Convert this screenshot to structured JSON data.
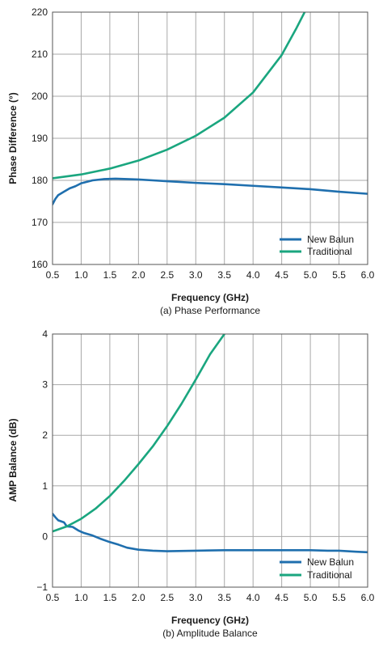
{
  "chart_data": [
    {
      "type": "line",
      "xlabel": "Frequency (GHz)",
      "ylabel": "Phase Difference (°)",
      "caption": "(a) Phase Performance",
      "xlim": [
        0.5,
        6.0
      ],
      "ylim": [
        160,
        220
      ],
      "xticks": [
        "0.5",
        "1.0",
        "1.5",
        "2.0",
        "2.5",
        "3.0",
        "3.5",
        "4.0",
        "4.5",
        "5.0",
        "5.5",
        "6.0"
      ],
      "yticks": [
        "160",
        "170",
        "180",
        "190",
        "200",
        "210",
        "220"
      ],
      "grid": true,
      "legend_position": "bottom-right",
      "series": [
        {
          "name": "New Balun",
          "color": "#1f6fae",
          "points": [
            [
              0.5,
              174.3
            ],
            [
              0.55,
              175.6
            ],
            [
              0.6,
              176.5
            ],
            [
              0.7,
              177.3
            ],
            [
              0.8,
              178.1
            ],
            [
              0.9,
              178.6
            ],
            [
              1.0,
              179.3
            ],
            [
              1.2,
              180.0
            ],
            [
              1.4,
              180.3
            ],
            [
              1.6,
              180.4
            ],
            [
              1.8,
              180.3
            ],
            [
              2.0,
              180.2
            ],
            [
              2.25,
              180.0
            ],
            [
              2.5,
              179.8
            ],
            [
              3.0,
              179.4
            ],
            [
              3.5,
              179.1
            ],
            [
              4.0,
              178.7
            ],
            [
              4.5,
              178.3
            ],
            [
              5.0,
              177.9
            ],
            [
              5.5,
              177.3
            ],
            [
              6.0,
              176.8
            ]
          ]
        },
        {
          "name": "Traditional",
          "color": "#1aa67f",
          "points": [
            [
              0.5,
              180.5
            ],
            [
              1.0,
              181.4
            ],
            [
              1.5,
              182.8
            ],
            [
              2.0,
              184.7
            ],
            [
              2.5,
              187.3
            ],
            [
              3.0,
              190.6
            ],
            [
              3.5,
              194.9
            ],
            [
              4.0,
              200.9
            ],
            [
              4.5,
              209.8
            ],
            [
              4.75,
              216.0
            ],
            [
              4.9,
              220.0
            ]
          ]
        }
      ]
    },
    {
      "type": "line",
      "xlabel": "Frequency (GHz)",
      "ylabel": "AMP Balance (dB)",
      "caption": "(b) Amplitude Balance",
      "xlim": [
        0.5,
        6.0
      ],
      "ylim": [
        -1,
        4
      ],
      "xticks": [
        "0.5",
        "1.0",
        "1.5",
        "2.0",
        "2.5",
        "3.0",
        "3.5",
        "4.0",
        "4.5",
        "5.0",
        "5.5",
        "6.0"
      ],
      "yticks": [
        "−1",
        "0",
        "1",
        "2",
        "3",
        "4"
      ],
      "grid": true,
      "legend_position": "bottom-right",
      "series": [
        {
          "name": "New Balun",
          "color": "#1f6fae",
          "points": [
            [
              0.5,
              0.45
            ],
            [
              0.55,
              0.38
            ],
            [
              0.6,
              0.32
            ],
            [
              0.7,
              0.28
            ],
            [
              0.75,
              0.2
            ],
            [
              0.85,
              0.19
            ],
            [
              0.95,
              0.12
            ],
            [
              1.05,
              0.07
            ],
            [
              1.2,
              0.02
            ],
            [
              1.35,
              -0.05
            ],
            [
              1.5,
              -0.11
            ],
            [
              1.65,
              -0.16
            ],
            [
              1.8,
              -0.22
            ],
            [
              2.0,
              -0.26
            ],
            [
              2.25,
              -0.28
            ],
            [
              2.5,
              -0.29
            ],
            [
              3.0,
              -0.28
            ],
            [
              3.5,
              -0.27
            ],
            [
              4.0,
              -0.27
            ],
            [
              4.5,
              -0.27
            ],
            [
              5.0,
              -0.27
            ],
            [
              5.3,
              -0.28
            ],
            [
              5.5,
              -0.28
            ],
            [
              5.8,
              -0.3
            ],
            [
              6.0,
              -0.31
            ]
          ]
        },
        {
          "name": "Traditional",
          "color": "#1aa67f",
          "points": [
            [
              0.5,
              0.1
            ],
            [
              0.75,
              0.2
            ],
            [
              1.0,
              0.35
            ],
            [
              1.25,
              0.55
            ],
            [
              1.5,
              0.8
            ],
            [
              1.75,
              1.1
            ],
            [
              2.0,
              1.43
            ],
            [
              2.25,
              1.78
            ],
            [
              2.5,
              2.18
            ],
            [
              2.75,
              2.62
            ],
            [
              3.0,
              3.1
            ],
            [
              3.25,
              3.6
            ],
            [
              3.5,
              4.0
            ]
          ]
        }
      ]
    }
  ]
}
